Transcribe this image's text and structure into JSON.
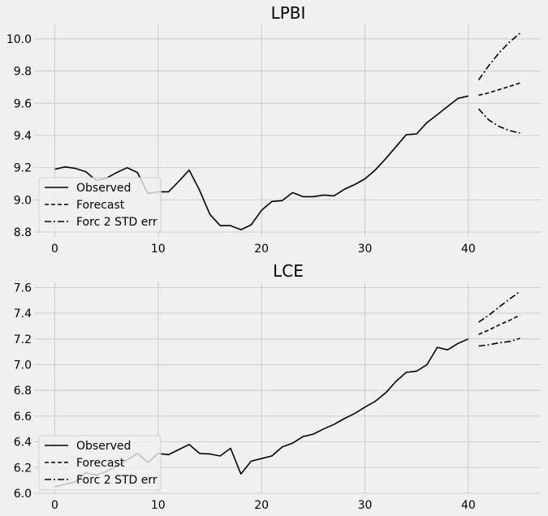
{
  "chart_data": [
    {
      "type": "line",
      "title": "LPBI",
      "xlabel": "",
      "ylabel": "",
      "xlim": [
        -2,
        47
      ],
      "ylim": [
        8.77,
        10.09
      ],
      "xticks": [
        0,
        10,
        20,
        30,
        40
      ],
      "yticks": [
        8.8,
        9.0,
        9.2,
        9.4,
        9.6,
        9.8,
        10.0
      ],
      "ytick_labels": [
        "8.8",
        "9.0",
        "9.2",
        "9.4",
        "9.6",
        "9.8",
        "10.0"
      ],
      "grid": true,
      "legend_position": "lower-left",
      "series": [
        {
          "name": "Observed",
          "style": "solid",
          "x": [
            0,
            1,
            2,
            3,
            4,
            5,
            6,
            7,
            8,
            9,
            10,
            11,
            12,
            13,
            14,
            15,
            16,
            17,
            18,
            19,
            20,
            21,
            22,
            23,
            24,
            25,
            26,
            27,
            28,
            29,
            30,
            31,
            32,
            33,
            34,
            35,
            36,
            37,
            38,
            39,
            40
          ],
          "y": [
            9.19,
            9.205,
            9.195,
            9.175,
            9.12,
            9.135,
            9.17,
            9.2,
            9.17,
            9.04,
            9.05,
            9.05,
            9.115,
            9.185,
            9.06,
            8.91,
            8.84,
            8.84,
            8.815,
            8.845,
            8.935,
            8.99,
            8.995,
            9.045,
            9.02,
            9.02,
            9.03,
            9.025,
            9.065,
            9.095,
            9.13,
            9.185,
            9.255,
            9.33,
            9.405,
            9.41,
            9.48,
            9.53,
            9.58,
            9.63,
            9.645
          ]
        },
        {
          "name": "Forecast",
          "style": "dashed",
          "x": [
            41,
            42,
            43,
            44,
            45
          ],
          "y": [
            9.65,
            9.665,
            9.685,
            9.705,
            9.725
          ]
        },
        {
          "name": "Forc 2 STD err",
          "style": "dashdot",
          "x": [
            41,
            42,
            43,
            44,
            45
          ],
          "y": [
            9.745,
            9.835,
            9.915,
            9.98,
            10.035
          ]
        },
        {
          "name": "",
          "style": "dashdot",
          "x": [
            41,
            42,
            43,
            44,
            45
          ],
          "y": [
            9.565,
            9.495,
            9.455,
            9.43,
            9.415
          ]
        }
      ]
    },
    {
      "type": "line",
      "title": "LCE",
      "xlabel": "",
      "ylabel": "",
      "xlim": [
        -2,
        47
      ],
      "ylim": [
        6.0,
        7.64
      ],
      "xticks": [
        0,
        10,
        20,
        30,
        40
      ],
      "yticks": [
        6.0,
        6.2,
        6.4,
        6.6,
        6.8,
        7.0,
        7.2,
        7.4,
        7.6
      ],
      "ytick_labels": [
        "6.0",
        "6.2",
        "6.4",
        "6.6",
        "6.8",
        "7.0",
        "7.2",
        "7.4",
        "7.6"
      ],
      "grid": true,
      "legend_position": "lower-left",
      "series": [
        {
          "name": "Observed",
          "style": "solid",
          "x": [
            0,
            1,
            2,
            3,
            4,
            5,
            6,
            7,
            8,
            9,
            10,
            11,
            12,
            13,
            14,
            15,
            16,
            17,
            18,
            19,
            20,
            21,
            22,
            23,
            24,
            25,
            26,
            27,
            28,
            29,
            30,
            31,
            32,
            33,
            34,
            35,
            36,
            37,
            38,
            39,
            40
          ],
          "y": [
            6.05,
            6.07,
            6.09,
            6.16,
            6.14,
            6.17,
            6.21,
            6.26,
            6.31,
            6.24,
            6.31,
            6.3,
            6.34,
            6.38,
            6.31,
            6.305,
            6.29,
            6.35,
            6.15,
            6.25,
            6.27,
            6.29,
            6.36,
            6.39,
            6.44,
            6.46,
            6.5,
            6.535,
            6.58,
            6.62,
            6.67,
            6.715,
            6.78,
            6.87,
            6.94,
            6.95,
            7.0,
            7.135,
            7.115,
            7.165,
            7.2
          ]
        },
        {
          "name": "Forecast",
          "style": "dashed",
          "x": [
            41,
            42,
            43,
            44,
            45
          ],
          "y": [
            7.235,
            7.27,
            7.31,
            7.345,
            7.385
          ]
        },
        {
          "name": "Forc 2 STD err",
          "style": "dashdot",
          "x": [
            41,
            42,
            43,
            44,
            45
          ],
          "y": [
            7.33,
            7.385,
            7.45,
            7.51,
            7.57
          ]
        },
        {
          "name": "",
          "style": "dashdot",
          "x": [
            41,
            42,
            43,
            44,
            45
          ],
          "y": [
            7.145,
            7.155,
            7.17,
            7.18,
            7.205
          ]
        }
      ]
    }
  ],
  "legend": {
    "observed": "Observed",
    "forecast": "Forecast",
    "std_err": "Forc 2 STD err"
  },
  "colors": {
    "background": "#f0f0f0",
    "grid": "#cbcbcb",
    "line": "#000000",
    "legend_bg": "#f0f0f0"
  }
}
